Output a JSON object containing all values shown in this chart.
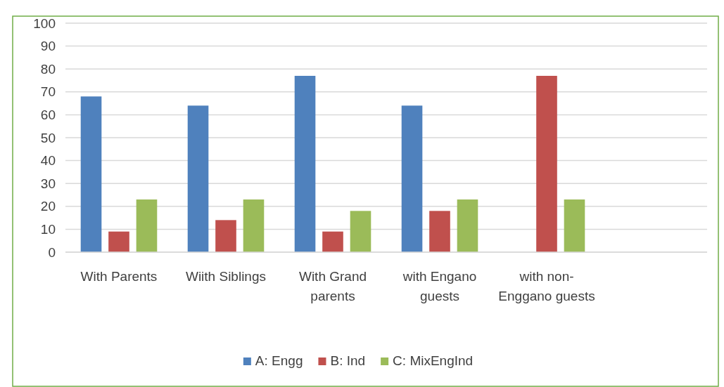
{
  "chart_data": {
    "type": "bar",
    "categories": [
      "With Parents",
      "Wiith Siblings",
      "With Grand parents",
      "with Engano guests",
      "with non-Enggano guests",
      null
    ],
    "series": [
      {
        "name": "A: Engg",
        "color": "#4f81bd",
        "values": [
          68,
          64,
          77,
          64,
          null,
          null
        ]
      },
      {
        "name": "B: Ind",
        "color": "#c0504d",
        "values": [
          9,
          14,
          9,
          18,
          77,
          null
        ]
      },
      {
        "name": "C: MixEngInd",
        "color": "#9bbb59",
        "values": [
          23,
          23,
          18,
          23,
          23,
          null
        ]
      }
    ],
    "ylim": [
      0,
      100
    ],
    "yticks": [
      0,
      10,
      20,
      30,
      40,
      50,
      60,
      70,
      80,
      90,
      100
    ],
    "grid": "y",
    "legend": "bottom"
  }
}
